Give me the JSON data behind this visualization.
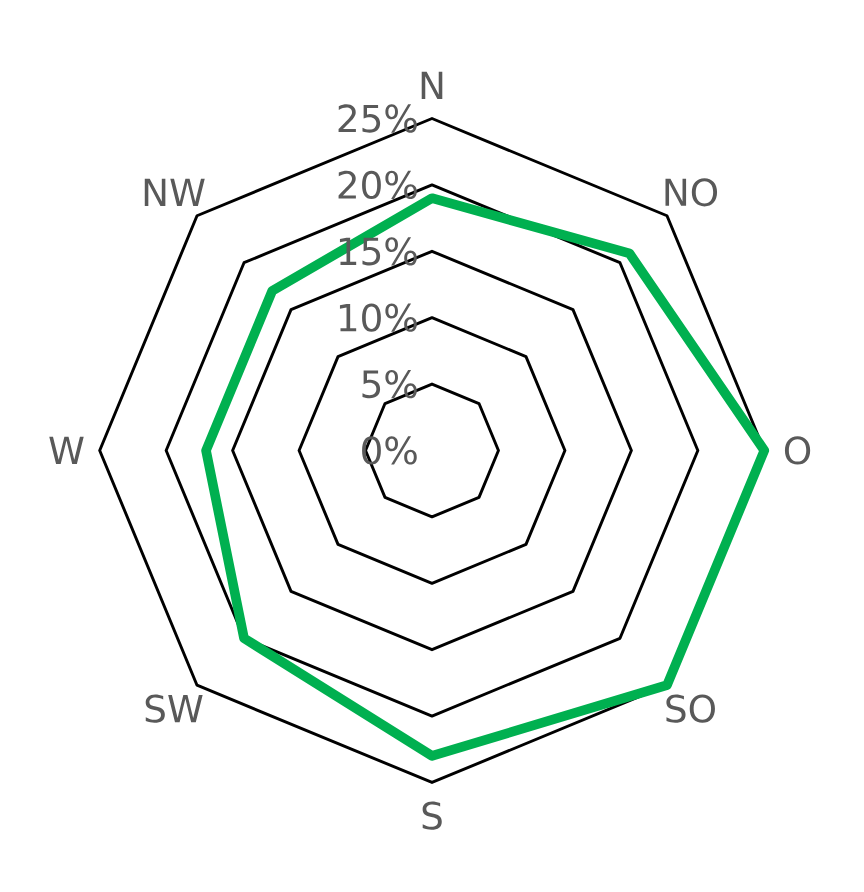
{
  "chart_data": {
    "type": "radar",
    "categories": [
      "N",
      "NO",
      "O",
      "SO",
      "S",
      "SW",
      "W",
      "NW"
    ],
    "series": [
      {
        "color": "#00b050",
        "values": [
          19,
          21,
          25,
          25,
          23,
          20,
          17,
          17
        ]
      }
    ],
    "ylim": [
      0,
      25
    ],
    "yticks": [
      {
        "value": 0,
        "label": "0%"
      },
      {
        "value": 5,
        "label": "5%"
      },
      {
        "value": 10,
        "label": "10%"
      },
      {
        "value": 15,
        "label": "15%"
      },
      {
        "value": 20,
        "label": "20%"
      },
      {
        "value": 25,
        "label": "25%"
      }
    ],
    "grid": true
  }
}
